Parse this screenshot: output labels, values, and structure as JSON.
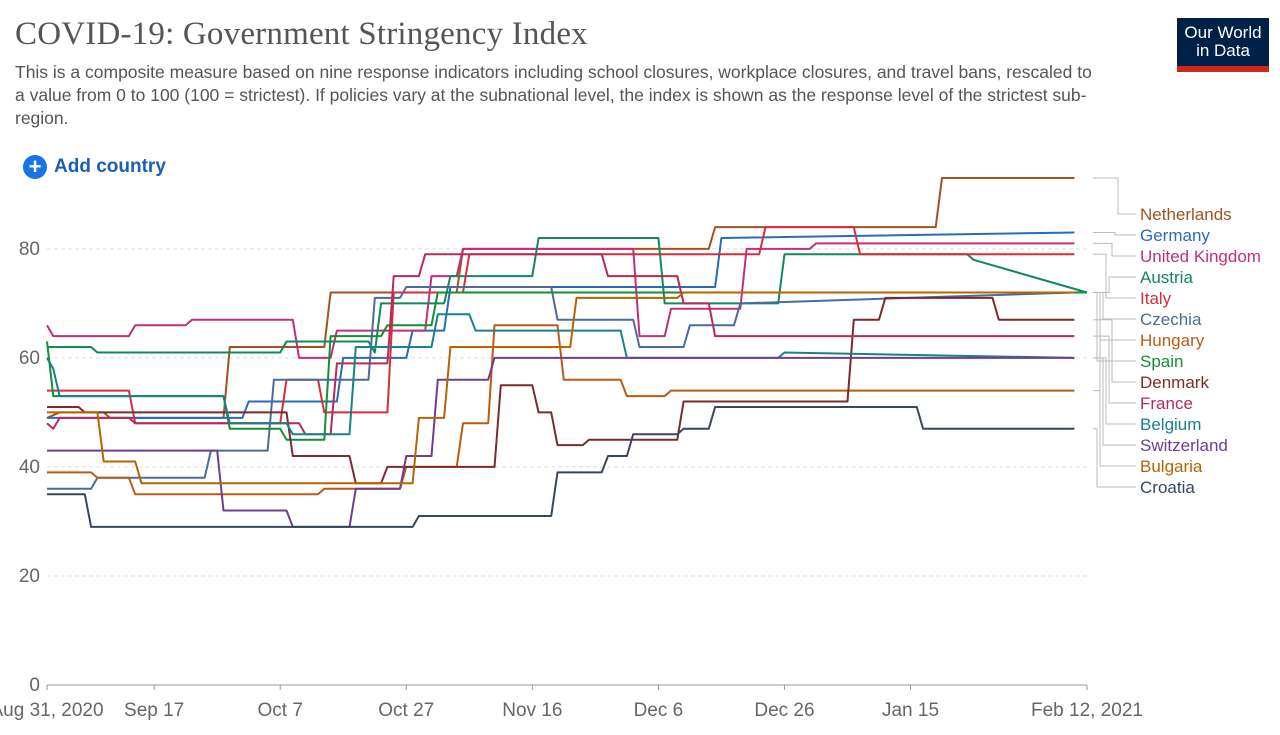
{
  "header": {
    "title": "COVID-19: Government Stringency Index",
    "subtitle": "This is a composite measure based on nine response indicators including school closures, workplace closures, and travel bans, rescaled to a value from 0 to 100 (100 = strictest). If policies vary at the subnational level, the index is shown as the response level of the strictest sub-region.",
    "logo_line1": "Our World",
    "logo_line2": "in Data",
    "add_country_label": "Add country"
  },
  "colors": {
    "logo_bg": "#002147",
    "logo_bar": "#ce261e",
    "link": "#1a5fb4",
    "grid": "#dddddd",
    "axis_text": "#666666"
  },
  "chart_data": {
    "type": "line",
    "title": "COVID-19: Government Stringency Index",
    "xlabel": "",
    "ylabel": "",
    "ylim": [
      0,
      93
    ],
    "y_ticks": [
      0,
      20,
      40,
      60,
      80
    ],
    "x_tick_labels": [
      "Aug 31, 2020",
      "Sep 17",
      "Oct 7",
      "Oct 27",
      "Nov 16",
      "Dec 6",
      "Dec 26",
      "Jan 15",
      "Feb 12, 2021"
    ],
    "x_start": "Aug 31, 2020",
    "x_end": "Feb 12, 2021",
    "grid": "horizontal dashed",
    "legend": "right",
    "series": [
      {
        "name": "Netherlands",
        "color": "#a2521f",
        "points": [
          [
            "2020-08-31",
            49
          ],
          [
            "2020-09-02",
            50
          ],
          [
            "2020-09-09",
            50
          ],
          [
            "2020-09-10",
            49
          ],
          [
            "2020-09-28",
            49
          ],
          [
            "2020-09-29",
            62
          ],
          [
            "2020-10-14",
            62
          ],
          [
            "2020-10-15",
            72
          ],
          [
            "2020-11-04",
            72
          ],
          [
            "2020-11-05",
            80
          ],
          [
            "2020-11-19",
            80
          ],
          [
            "2020-12-14",
            80
          ],
          [
            "2020-12-15",
            84
          ],
          [
            "2021-01-19",
            84
          ],
          [
            "2021-01-20",
            93
          ],
          [
            "2021-02-10",
            93
          ]
        ]
      },
      {
        "name": "Germany",
        "color": "#286bbb",
        "points": [
          [
            "2020-08-31",
            49
          ],
          [
            "2020-10-01",
            49
          ],
          [
            "2020-10-02",
            52
          ],
          [
            "2020-10-16",
            52
          ],
          [
            "2020-10-17",
            60
          ],
          [
            "2020-10-27",
            60
          ],
          [
            "2020-10-28",
            65
          ],
          [
            "2020-11-02",
            65
          ],
          [
            "2020-11-03",
            73
          ],
          [
            "2020-11-30",
            73
          ],
          [
            "2020-12-01",
            73
          ],
          [
            "2020-12-15",
            73
          ],
          [
            "2020-12-16",
            82
          ],
          [
            "2021-02-10",
            83
          ]
        ]
      },
      {
        "name": "United Kingdom",
        "color": "#c0307a",
        "points": [
          [
            "2020-08-31",
            66
          ],
          [
            "2020-09-01",
            64
          ],
          [
            "2020-09-13",
            64
          ],
          [
            "2020-09-14",
            66
          ],
          [
            "2020-09-22",
            66
          ],
          [
            "2020-09-23",
            67
          ],
          [
            "2020-10-09",
            67
          ],
          [
            "2020-10-10",
            60
          ],
          [
            "2020-10-15",
            60
          ],
          [
            "2020-10-16",
            65
          ],
          [
            "2020-10-30",
            65
          ],
          [
            "2020-10-31",
            75
          ],
          [
            "2020-11-04",
            75
          ],
          [
            "2020-11-05",
            80
          ],
          [
            "2020-12-02",
            80
          ],
          [
            "2020-12-03",
            64
          ],
          [
            "2020-12-07",
            64
          ],
          [
            "2020-12-08",
            69
          ],
          [
            "2020-12-19",
            69
          ],
          [
            "2020-12-20",
            80
          ],
          [
            "2020-12-30",
            80
          ],
          [
            "2020-12-31",
            81
          ],
          [
            "2021-02-10",
            81
          ]
        ]
      },
      {
        "name": "Austria",
        "color": "#0f8a5c",
        "points": [
          [
            "2020-08-31",
            62
          ],
          [
            "2020-09-07",
            62
          ],
          [
            "2020-09-08",
            61
          ],
          [
            "2020-10-07",
            61
          ],
          [
            "2020-10-08",
            63
          ],
          [
            "2020-10-21",
            63
          ],
          [
            "2020-10-22",
            61
          ],
          [
            "2020-10-23",
            70
          ],
          [
            "2020-11-02",
            70
          ],
          [
            "2020-11-03",
            75
          ],
          [
            "2020-11-16",
            75
          ],
          [
            "2020-11-17",
            82
          ],
          [
            "2020-12-06",
            82
          ],
          [
            "2020-12-07",
            70
          ],
          [
            "2020-12-25",
            70
          ],
          [
            "2020-12-26",
            79
          ],
          [
            "2021-01-24",
            79
          ],
          [
            "2021-01-25",
            78
          ],
          [
            "2021-02-12",
            72
          ]
        ]
      },
      {
        "name": "Italy",
        "color": "#d62e3c",
        "points": [
          [
            "2020-08-31",
            54
          ],
          [
            "2020-09-13",
            54
          ],
          [
            "2020-09-14",
            48
          ],
          [
            "2020-09-30",
            48
          ],
          [
            "2020-10-01",
            48
          ],
          [
            "2020-10-07",
            48
          ],
          [
            "2020-10-08",
            56
          ],
          [
            "2020-10-13",
            56
          ],
          [
            "2020-10-14",
            50
          ],
          [
            "2020-10-24",
            50
          ],
          [
            "2020-10-25",
            72
          ],
          [
            "2020-11-05",
            72
          ],
          [
            "2020-11-06",
            79
          ],
          [
            "2020-11-23",
            79
          ],
          [
            "2020-12-22",
            79
          ],
          [
            "2020-12-23",
            84
          ],
          [
            "2021-01-06",
            84
          ],
          [
            "2021-01-07",
            79
          ],
          [
            "2021-02-10",
            79
          ]
        ]
      },
      {
        "name": "Czechia",
        "color": "#4c6a9c",
        "points": [
          [
            "2020-08-31",
            36
          ],
          [
            "2020-09-07",
            36
          ],
          [
            "2020-09-08",
            38
          ],
          [
            "2020-09-25",
            38
          ],
          [
            "2020-09-26",
            43
          ],
          [
            "2020-10-05",
            43
          ],
          [
            "2020-10-06",
            56
          ],
          [
            "2020-10-21",
            56
          ],
          [
            "2020-10-22",
            71
          ],
          [
            "2020-10-26",
            71
          ],
          [
            "2020-10-27",
            73
          ],
          [
            "2020-11-19",
            73
          ],
          [
            "2020-11-20",
            67
          ],
          [
            "2020-12-02",
            67
          ],
          [
            "2020-12-03",
            62
          ],
          [
            "2020-12-10",
            62
          ],
          [
            "2020-12-11",
            66
          ],
          [
            "2020-12-18",
            66
          ],
          [
            "2020-12-19",
            70
          ],
          [
            "2021-02-10",
            72
          ]
        ]
      },
      {
        "name": "Hungary",
        "color": "#be5915",
        "points": [
          [
            "2020-08-31",
            39
          ],
          [
            "2020-09-07",
            39
          ],
          [
            "2020-09-08",
            38
          ],
          [
            "2020-09-13",
            38
          ],
          [
            "2020-09-14",
            35
          ],
          [
            "2020-10-13",
            35
          ],
          [
            "2020-10-14",
            36
          ],
          [
            "2020-10-26",
            36
          ],
          [
            "2020-10-27",
            40
          ],
          [
            "2020-11-04",
            40
          ],
          [
            "2020-11-05",
            48
          ],
          [
            "2020-11-09",
            48
          ],
          [
            "2020-11-10",
            66
          ],
          [
            "2020-11-20",
            66
          ],
          [
            "2020-11-21",
            56
          ],
          [
            "2020-11-30",
            56
          ],
          [
            "2020-12-01",
            53
          ],
          [
            "2020-12-07",
            53
          ],
          [
            "2020-12-08",
            54
          ],
          [
            "2021-02-10",
            54
          ]
        ]
      },
      {
        "name": "Spain",
        "color": "#148f31",
        "points": [
          [
            "2020-08-31",
            63
          ],
          [
            "2020-09-01",
            53
          ],
          [
            "2020-09-28",
            53
          ],
          [
            "2020-09-29",
            47
          ],
          [
            "2020-10-07",
            47
          ],
          [
            "2020-10-08",
            45
          ],
          [
            "2020-10-14",
            45
          ],
          [
            "2020-10-15",
            64
          ],
          [
            "2020-10-23",
            64
          ],
          [
            "2020-10-24",
            66
          ],
          [
            "2020-10-31",
            66
          ],
          [
            "2020-11-01",
            72
          ],
          [
            "2021-02-12",
            72
          ]
        ]
      },
      {
        "name": "Denmark",
        "color": "#7c2b2b",
        "points": [
          [
            "2020-08-31",
            51
          ],
          [
            "2020-09-05",
            51
          ],
          [
            "2020-09-06",
            50
          ],
          [
            "2020-10-08",
            50
          ],
          [
            "2020-10-09",
            42
          ],
          [
            "2020-10-18",
            42
          ],
          [
            "2020-10-19",
            37
          ],
          [
            "2020-10-23",
            37
          ],
          [
            "2020-10-24",
            40
          ],
          [
            "2020-11-10",
            40
          ],
          [
            "2020-11-11",
            55
          ],
          [
            "2020-11-16",
            55
          ],
          [
            "2020-11-17",
            50
          ],
          [
            "2020-11-19",
            50
          ],
          [
            "2020-11-20",
            44
          ],
          [
            "2020-11-24",
            44
          ],
          [
            "2020-11-25",
            45
          ],
          [
            "2020-12-09",
            45
          ],
          [
            "2020-12-10",
            52
          ],
          [
            "2021-01-05",
            52
          ],
          [
            "2021-01-06",
            67
          ],
          [
            "2021-01-10",
            67
          ],
          [
            "2021-01-11",
            71
          ],
          [
            "2021-01-28",
            71
          ],
          [
            "2021-01-29",
            67
          ],
          [
            "2021-02-10",
            67
          ]
        ]
      },
      {
        "name": "France",
        "color": "#b8285a",
        "points": [
          [
            "2020-08-31",
            48
          ],
          [
            "2020-09-01",
            47
          ],
          [
            "2020-09-02",
            49
          ],
          [
            "2020-09-13",
            49
          ],
          [
            "2020-09-14",
            48
          ],
          [
            "2020-10-10",
            48
          ],
          [
            "2020-10-11",
            46
          ],
          [
            "2020-10-15",
            46
          ],
          [
            "2020-10-16",
            59
          ],
          [
            "2020-10-24",
            59
          ],
          [
            "2020-10-25",
            75
          ],
          [
            "2020-10-29",
            75
          ],
          [
            "2020-10-30",
            79
          ],
          [
            "2020-11-27",
            79
          ],
          [
            "2020-11-28",
            75
          ],
          [
            "2020-12-04",
            75
          ],
          [
            "2020-12-09",
            75
          ],
          [
            "2020-12-10",
            70
          ],
          [
            "2020-12-14",
            70
          ],
          [
            "2020-12-15",
            64
          ],
          [
            "2021-02-10",
            64
          ]
        ]
      },
      {
        "name": "Belgium",
        "color": "#1a8189",
        "points": [
          [
            "2020-08-31",
            60
          ],
          [
            "2020-09-01",
            58
          ],
          [
            "2020-09-02",
            53
          ],
          [
            "2020-09-28",
            53
          ],
          [
            "2020-09-29",
            48
          ],
          [
            "2020-10-08",
            48
          ],
          [
            "2020-10-09",
            46
          ],
          [
            "2020-10-18",
            46
          ],
          [
            "2020-10-19",
            62
          ],
          [
            "2020-10-31",
            62
          ],
          [
            "2020-11-01",
            68
          ],
          [
            "2020-11-06",
            68
          ],
          [
            "2020-11-07",
            65
          ],
          [
            "2020-11-30",
            65
          ],
          [
            "2020-12-01",
            60
          ],
          [
            "2020-12-25",
            60
          ],
          [
            "2020-12-26",
            61
          ],
          [
            "2021-02-10",
            60
          ]
        ]
      },
      {
        "name": "Switzerland",
        "color": "#6d3e91",
        "points": [
          [
            "2020-08-31",
            43
          ],
          [
            "2020-09-27",
            43
          ],
          [
            "2020-09-28",
            32
          ],
          [
            "2020-10-08",
            32
          ],
          [
            "2020-10-09",
            29
          ],
          [
            "2020-10-18",
            29
          ],
          [
            "2020-10-19",
            36
          ],
          [
            "2020-10-26",
            36
          ],
          [
            "2020-10-27",
            42
          ],
          [
            "2020-10-31",
            42
          ],
          [
            "2020-11-01",
            56
          ],
          [
            "2020-11-09",
            56
          ],
          [
            "2020-11-10",
            60
          ],
          [
            "2021-02-10",
            60
          ]
        ]
      },
      {
        "name": "Bulgaria",
        "color": "#b56400",
        "points": [
          [
            "2020-08-31",
            50
          ],
          [
            "2020-09-08",
            50
          ],
          [
            "2020-09-09",
            41
          ],
          [
            "2020-09-14",
            41
          ],
          [
            "2020-09-15",
            37
          ],
          [
            "2020-10-28",
            37
          ],
          [
            "2020-10-29",
            49
          ],
          [
            "2020-11-02",
            49
          ],
          [
            "2020-11-03",
            62
          ],
          [
            "2020-11-22",
            62
          ],
          [
            "2020-11-23",
            71
          ],
          [
            "2020-12-09",
            71
          ],
          [
            "2020-12-10",
            72
          ],
          [
            "2021-02-10",
            72
          ]
        ]
      },
      {
        "name": "Croatia",
        "color": "#37475e",
        "points": [
          [
            "2020-08-31",
            35
          ],
          [
            "2020-09-06",
            35
          ],
          [
            "2020-09-07",
            29
          ],
          [
            "2020-10-28",
            29
          ],
          [
            "2020-10-29",
            31
          ],
          [
            "2020-11-19",
            31
          ],
          [
            "2020-11-20",
            39
          ],
          [
            "2020-11-27",
            39
          ],
          [
            "2020-11-28",
            42
          ],
          [
            "2020-12-01",
            42
          ],
          [
            "2020-12-02",
            46
          ],
          [
            "2020-12-09",
            46
          ],
          [
            "2020-12-10",
            47
          ],
          [
            "2020-12-14",
            47
          ],
          [
            "2020-12-15",
            51
          ],
          [
            "2021-01-16",
            51
          ],
          [
            "2021-01-17",
            47
          ],
          [
            "2021-02-10",
            47
          ]
        ]
      }
    ]
  }
}
